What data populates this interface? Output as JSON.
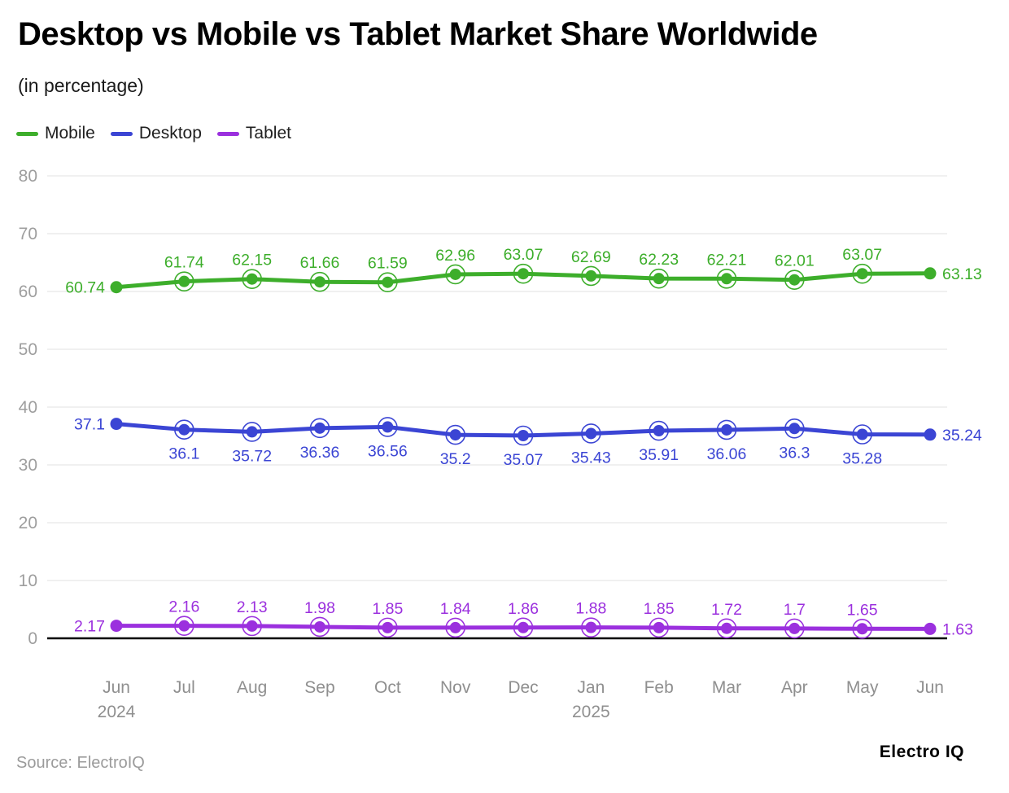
{
  "header": {
    "title": "Desktop vs Mobile vs Tablet Market Share Worldwide",
    "subtitle": "(in percentage)"
  },
  "legend": {
    "items": [
      {
        "label": "Mobile",
        "color": "#3dae2b"
      },
      {
        "label": "Desktop",
        "color": "#3b45d4"
      },
      {
        "label": "Tablet",
        "color": "#9b30de"
      }
    ]
  },
  "chart_data": {
    "type": "line",
    "title": "Desktop vs Mobile vs Tablet Market Share Worldwide",
    "subtitle": "(in percentage)",
    "categories": [
      "Jun",
      "Jul",
      "Aug",
      "Sep",
      "Oct",
      "Nov",
      "Dec",
      "Jan",
      "Feb",
      "Mar",
      "Apr",
      "May",
      "Jun"
    ],
    "category_sublabels": {
      "0": "2024",
      "7": "2025"
    },
    "series": [
      {
        "name": "Mobile",
        "color": "#3dae2b",
        "label_position": "above",
        "values": [
          60.74,
          61.74,
          62.15,
          61.66,
          61.59,
          62.96,
          63.07,
          62.69,
          62.23,
          62.21,
          62.01,
          63.07,
          63.13
        ]
      },
      {
        "name": "Desktop",
        "color": "#3b45d4",
        "label_position": "below",
        "values": [
          37.1,
          36.1,
          35.72,
          36.36,
          36.56,
          35.2,
          35.07,
          35.43,
          35.91,
          36.06,
          36.3,
          35.28,
          35.24
        ]
      },
      {
        "name": "Tablet",
        "color": "#9b30de",
        "label_position": "above",
        "values": [
          2.17,
          2.16,
          2.13,
          1.98,
          1.85,
          1.84,
          1.86,
          1.88,
          1.85,
          1.72,
          1.7,
          1.65,
          1.63
        ]
      }
    ],
    "ylim": [
      0,
      80
    ],
    "ytick_step": 10,
    "grid": true,
    "legend_position": "top-left",
    "colors": {
      "gridline": "#e6e6e6",
      "axis_line": "#000000",
      "ytick_text": "#9e9e9e",
      "xtick_text": "#8f8f8f"
    }
  },
  "footer": {
    "source": "Source: ElectroIQ",
    "brand": "Electro IQ"
  }
}
